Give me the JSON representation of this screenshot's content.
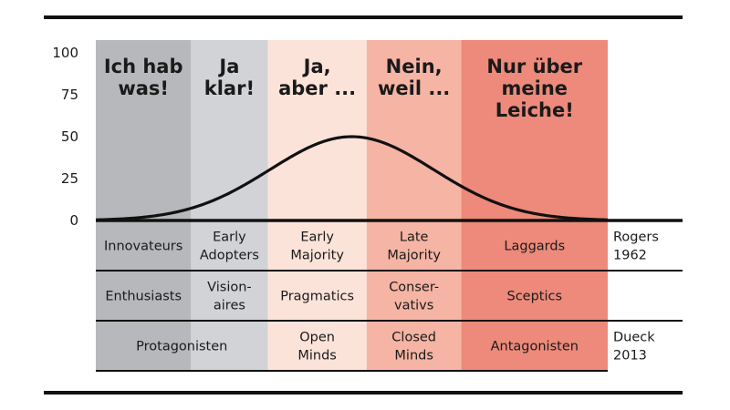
{
  "chart_data": {
    "type": "area",
    "ylim": [
      0,
      100
    ],
    "yticks": [
      "100",
      "75",
      "50",
      "25",
      "0"
    ],
    "curve": {
      "peak": 50,
      "mean": 0.5,
      "sd": 0.16
    },
    "segments": [
      {
        "key": "innov",
        "heading": [
          "Ich hab",
          "was!"
        ],
        "color": "#b7b8bb",
        "from": 0.0,
        "to": 0.186
      },
      {
        "key": "early",
        "heading": [
          "Ja",
          "klar!"
        ],
        "color": "#d2d3d6",
        "from": 0.186,
        "to": 0.336
      },
      {
        "key": "ema",
        "heading": [
          "Ja,",
          "aber ..."
        ],
        "color": "#fce3da",
        "from": 0.336,
        "to": 0.529
      },
      {
        "key": "lma",
        "heading": [
          "Nein,",
          "weil ..."
        ],
        "color": "#f5b4a4",
        "from": 0.529,
        "to": 0.714
      },
      {
        "key": "lag",
        "heading": [
          "Nur über",
          "meine",
          "Leiche!"
        ],
        "color": "#ed8a7b",
        "from": 0.714,
        "to": 1.0
      }
    ],
    "rows": [
      {
        "source": [
          "Rogers",
          "1962"
        ],
        "cells": [
          {
            "segments": [
              0
            ],
            "lines": [
              "Innovateurs"
            ]
          },
          {
            "segments": [
              1
            ],
            "lines": [
              "Early",
              "Adopters"
            ]
          },
          {
            "segments": [
              2
            ],
            "lines": [
              "Early",
              "Majority"
            ]
          },
          {
            "segments": [
              3
            ],
            "lines": [
              "Late",
              "Majority"
            ]
          },
          {
            "segments": [
              4
            ],
            "lines": [
              "Laggards"
            ]
          }
        ]
      },
      {
        "source": [],
        "cells": [
          {
            "segments": [
              0
            ],
            "lines": [
              "Enthusiasts"
            ]
          },
          {
            "segments": [
              1
            ],
            "lines": [
              "Vision-",
              "aires"
            ]
          },
          {
            "segments": [
              2
            ],
            "lines": [
              "Pragmatics"
            ]
          },
          {
            "segments": [
              3
            ],
            "lines": [
              "Conser-",
              "vativs"
            ]
          },
          {
            "segments": [
              4
            ],
            "lines": [
              "Sceptics"
            ]
          }
        ]
      },
      {
        "source": [
          "Dueck",
          "2013"
        ],
        "cells": [
          {
            "segments": [
              0,
              1
            ],
            "lines": [
              "Protagonisten"
            ]
          },
          {
            "segments": [
              2
            ],
            "lines": [
              "Open",
              "Minds"
            ]
          },
          {
            "segments": [
              3
            ],
            "lines": [
              "Closed",
              "Minds"
            ]
          },
          {
            "segments": [
              4
            ],
            "lines": [
              "Antagonisten"
            ]
          }
        ]
      }
    ]
  }
}
